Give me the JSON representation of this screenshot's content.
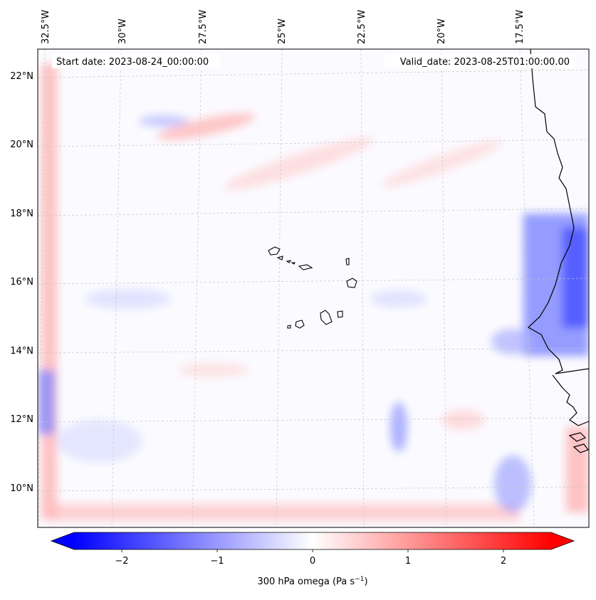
{
  "header": {
    "start_date": "Start date: 2023-08-24_00:00:00",
    "valid_date": "Valid_date: 2023-08-25T01:00:00.00"
  },
  "map": {
    "lon_labels": [
      "32.5°W",
      "30°W",
      "27.5°W",
      "25°W",
      "22.5°W",
      "20°W",
      "17.5°W"
    ],
    "lat_labels": [
      "22°N",
      "20°N",
      "18°N",
      "16°N",
      "14°N",
      "12°N",
      "10°N"
    ],
    "colors": {
      "negative_strong": "#0000ff",
      "negative_light": "#c8c8ff",
      "neutral": "#ffffff",
      "positive_light": "#ffc8c8",
      "positive_strong": "#ff0000",
      "coastline": "#000000",
      "gridline": "#bbbbbb"
    }
  },
  "colorbar": {
    "tick_labels": [
      "−2",
      "−1",
      "0",
      "1",
      "2"
    ],
    "label_prefix": "300 hPa omega (Pa s",
    "label_exp": "−1",
    "label_suffix": ")"
  }
}
